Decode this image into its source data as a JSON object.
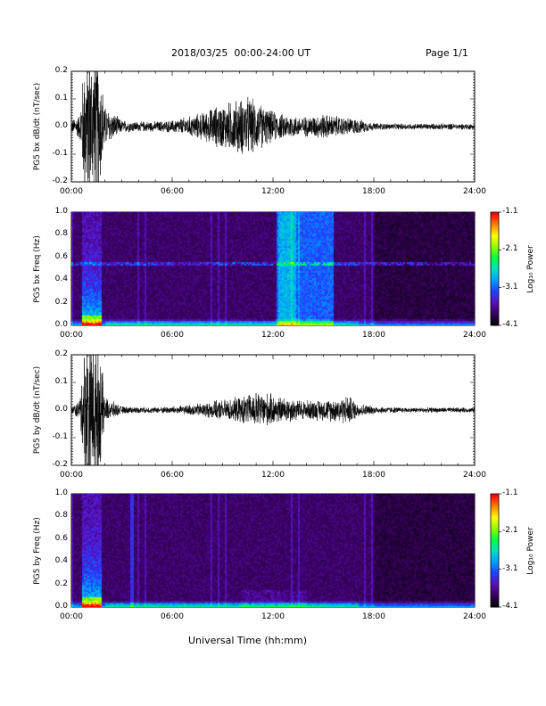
{
  "header": {
    "title": "2018/03/25  00:00-24:00 UT",
    "page": "Page 1/1"
  },
  "footer": {
    "xlabel": "Universal Time (hh:mm)"
  },
  "colorscale": {
    "label": "Log₁₀ Power",
    "ticks": [
      "-1.1",
      "-2.1",
      "-3.1",
      "-4.1"
    ],
    "tick_values": [
      -1.1,
      -2.1,
      -3.1,
      -4.1
    ],
    "range": [
      -4.1,
      -1.1
    ],
    "colors": [
      "#000000",
      "#3a0060",
      "#5a10c0",
      "#2040ff",
      "#00a0ff",
      "#00e0c0",
      "#00ff40",
      "#90ff00",
      "#ffff00",
      "#ff8000",
      "#ff0000"
    ]
  },
  "chart_data": [
    {
      "id": "bx-waveform",
      "type": "line",
      "ylabel": "PG5 bx dB/dt (nT/sec)",
      "xlim": [
        0,
        24
      ],
      "ylim": [
        -0.2,
        0.2
      ],
      "xticks": [
        "00:00",
        "06:00",
        "12:00",
        "18:00",
        "24:00"
      ],
      "xtick_values": [
        0,
        6,
        12,
        18,
        24
      ],
      "yticks": [
        "0.2",
        "0.1",
        "0.0",
        "-0.1",
        "-0.2"
      ],
      "ytick_values": [
        0.2,
        0.1,
        0.0,
        -0.1,
        -0.2
      ],
      "envelope_hours": [
        0,
        0.5,
        0.8,
        1.0,
        1.3,
        1.6,
        2.0,
        3,
        4,
        5,
        6,
        7,
        8,
        8.5,
        9,
        9.5,
        10,
        10.5,
        11,
        11.5,
        12,
        12.5,
        13,
        13.5,
        14,
        15,
        16,
        17,
        18,
        19,
        20,
        21,
        22,
        23,
        24
      ],
      "envelope_amplitude": [
        0.025,
        0.05,
        0.3,
        0.3,
        0.3,
        0.3,
        0.08,
        0.025,
        0.02,
        0.02,
        0.025,
        0.04,
        0.06,
        0.08,
        0.09,
        0.1,
        0.11,
        0.12,
        0.1,
        0.08,
        0.06,
        0.05,
        0.05,
        0.04,
        0.04,
        0.05,
        0.04,
        0.03,
        0.015,
        0.012,
        0.012,
        0.012,
        0.012,
        0.012,
        0.012
      ]
    },
    {
      "id": "bx-spectrogram",
      "type": "heatmap",
      "ylabel": "PG5 bx Freq (Hz)",
      "xlim": [
        0,
        24
      ],
      "ylim": [
        0,
        1
      ],
      "xticks": [
        "00:00",
        "06:00",
        "12:00",
        "18:00",
        "24:00"
      ],
      "xtick_values": [
        0,
        6,
        12,
        18,
        24
      ],
      "yticks": [
        "1.0",
        "0.8",
        "0.6",
        "0.4",
        "0.2",
        "0.0"
      ],
      "ytick_values": [
        1.0,
        0.8,
        0.6,
        0.4,
        0.2,
        0.0
      ],
      "zlim": [
        -4.1,
        -1.1
      ]
    },
    {
      "id": "by-waveform",
      "type": "line",
      "ylabel": "PG5 by dB/dt (nT/sec)",
      "xlim": [
        0,
        24
      ],
      "ylim": [
        -0.2,
        0.2
      ],
      "xticks": [
        "00:00",
        "06:00",
        "12:00",
        "18:00",
        "24:00"
      ],
      "xtick_values": [
        0,
        6,
        12,
        18,
        24
      ],
      "yticks": [
        "0.2",
        "0.1",
        "0.0",
        "-0.1",
        "-0.2"
      ],
      "ytick_values": [
        0.2,
        0.1,
        0.0,
        -0.1,
        -0.2
      ],
      "envelope_hours": [
        0,
        0.5,
        0.8,
        1.0,
        1.3,
        1.6,
        2.0,
        3,
        4,
        5,
        6,
        7,
        8,
        9,
        10,
        10.5,
        11,
        11.5,
        12,
        12.5,
        13,
        13.5,
        14,
        15,
        16,
        16.5,
        17,
        18,
        19,
        20,
        21,
        22,
        23,
        24
      ],
      "envelope_amplitude": [
        0.015,
        0.04,
        0.3,
        0.3,
        0.3,
        0.3,
        0.05,
        0.015,
        0.012,
        0.012,
        0.015,
        0.02,
        0.03,
        0.04,
        0.05,
        0.06,
        0.07,
        0.07,
        0.06,
        0.05,
        0.05,
        0.04,
        0.04,
        0.04,
        0.05,
        0.06,
        0.03,
        0.015,
        0.012,
        0.01,
        0.01,
        0.01,
        0.01,
        0.01
      ]
    },
    {
      "id": "by-spectrogram",
      "type": "heatmap",
      "ylabel": "PG5 by Freq (Hz)",
      "xlim": [
        0,
        24
      ],
      "ylim": [
        0,
        1
      ],
      "xticks": [
        "00:00",
        "06:00",
        "12:00",
        "18:00",
        "24:00"
      ],
      "xtick_values": [
        0,
        6,
        12,
        18,
        24
      ],
      "yticks": [
        "1.0",
        "0.8",
        "0.6",
        "0.4",
        "0.2",
        "0.0"
      ],
      "ytick_values": [
        1.0,
        0.8,
        0.6,
        0.4,
        0.2,
        0.0
      ],
      "zlim": [
        -4.1,
        -1.1
      ]
    }
  ]
}
